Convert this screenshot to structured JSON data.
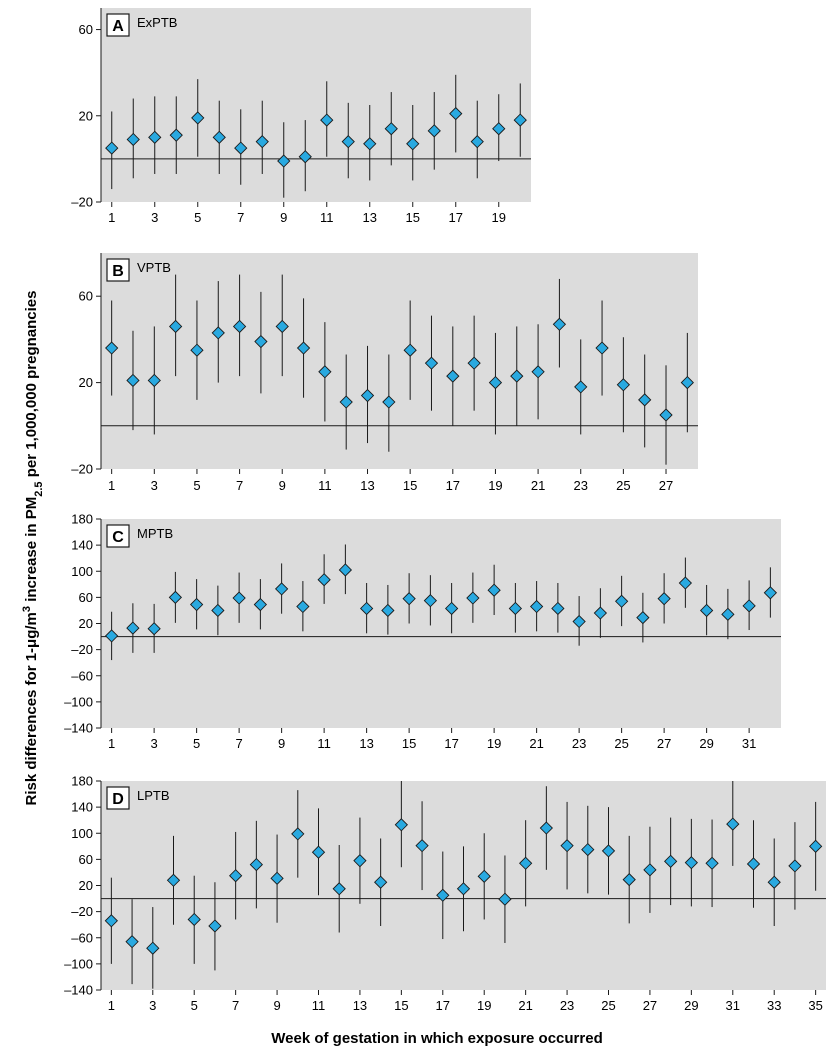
{
  "figure": {
    "ylabel": "Risk differences for 1-μg/m³ increase in PM2.5 per 1,000,000 pregnancies",
    "xlabel": "Week of gestation in which exposure occurred",
    "colors": {
      "plot_bg": "#dcdcdc",
      "marker": "#29a9e0",
      "marker_edge": "#1a1a1a",
      "line": "#1a1a1a"
    }
  },
  "chart_data": [
    {
      "type": "scatter",
      "panel_letter": "A",
      "title": "ExPTB",
      "xlim": [
        0.5,
        20.5
      ],
      "ylim": [
        -20,
        70
      ],
      "yticks": [
        -20,
        20,
        60
      ],
      "ytick_labels": [
        "–20",
        "20",
        "60"
      ],
      "xticks": [
        1,
        3,
        5,
        7,
        9,
        11,
        13,
        15,
        17,
        19
      ],
      "reference_line": 0,
      "x": [
        1,
        2,
        3,
        4,
        5,
        6,
        7,
        8,
        9,
        10,
        11,
        12,
        13,
        14,
        15,
        16,
        17,
        18,
        19,
        20
      ],
      "y": [
        5,
        9,
        10,
        11,
        19,
        10,
        5,
        8,
        -1,
        1,
        18,
        8,
        7,
        14,
        7,
        13,
        21,
        8,
        14,
        18
      ],
      "ci_low": [
        -14,
        -9,
        -7,
        -7,
        1,
        -7,
        -12,
        -7,
        -18,
        -15,
        1,
        -9,
        -10,
        -3,
        -10,
        -5,
        3,
        -9,
        -1,
        1
      ],
      "ci_high": [
        22,
        28,
        29,
        29,
        37,
        27,
        23,
        27,
        17,
        18,
        36,
        26,
        25,
        31,
        25,
        31,
        39,
        27,
        30,
        35
      ]
    },
    {
      "type": "scatter",
      "panel_letter": "B",
      "title": "VPTB",
      "xlim": [
        0.5,
        28.5
      ],
      "ylim": [
        -20,
        80
      ],
      "yticks": [
        -20,
        20,
        60
      ],
      "ytick_labels": [
        "–20",
        "20",
        "60"
      ],
      "xticks": [
        1,
        3,
        5,
        7,
        9,
        11,
        13,
        15,
        17,
        19,
        21,
        23,
        25,
        27
      ],
      "reference_line": 0,
      "x": [
        1,
        2,
        3,
        4,
        5,
        6,
        7,
        8,
        9,
        10,
        11,
        12,
        13,
        14,
        15,
        16,
        17,
        18,
        19,
        20,
        21,
        22,
        23,
        24,
        25,
        26,
        27,
        28
      ],
      "y": [
        36,
        21,
        21,
        46,
        35,
        43,
        46,
        39,
        46,
        36,
        25,
        11,
        14,
        11,
        35,
        29,
        23,
        29,
        20,
        23,
        25,
        47,
        18,
        36,
        19,
        12,
        5,
        20
      ],
      "ci_low": [
        14,
        -2,
        -4,
        23,
        12,
        20,
        23,
        15,
        23,
        13,
        2,
        -11,
        -8,
        -12,
        12,
        7,
        0,
        7,
        -4,
        0,
        3,
        27,
        -4,
        14,
        -3,
        -10,
        -18,
        -3
      ],
      "ci_high": [
        58,
        44,
        46,
        70,
        58,
        67,
        70,
        62,
        70,
        59,
        48,
        33,
        37,
        33,
        58,
        51,
        46,
        51,
        43,
        46,
        47,
        68,
        40,
        58,
        41,
        33,
        28,
        43
      ]
    },
    {
      "type": "scatter",
      "panel_letter": "C",
      "title": "MPTB",
      "xlim": [
        0.5,
        32.5
      ],
      "ylim": [
        -140,
        180
      ],
      "yticks": [
        -140,
        -100,
        -60,
        -20,
        20,
        60,
        100,
        140,
        180
      ],
      "ytick_labels": [
        "–140",
        "–100",
        "–60",
        "–20",
        "20",
        "60",
        "100",
        "140",
        "180"
      ],
      "xticks": [
        1,
        3,
        5,
        7,
        9,
        11,
        13,
        15,
        17,
        19,
        21,
        23,
        25,
        27,
        29,
        31
      ],
      "reference_line": 0,
      "x": [
        1,
        2,
        3,
        4,
        5,
        6,
        7,
        8,
        9,
        10,
        11,
        12,
        13,
        14,
        15,
        16,
        17,
        18,
        19,
        20,
        21,
        22,
        23,
        24,
        25,
        26,
        27,
        28,
        29,
        30,
        31,
        32
      ],
      "y": [
        1,
        13,
        12,
        60,
        49,
        40,
        59,
        49,
        73,
        46,
        87,
        102,
        43,
        40,
        58,
        55,
        43,
        59,
        71,
        43,
        46,
        43,
        23,
        36,
        54,
        29,
        58,
        82,
        40,
        34,
        47,
        67
      ],
      "ci_low": [
        -36,
        -25,
        -25,
        21,
        11,
        2,
        21,
        11,
        35,
        8,
        50,
        65,
        5,
        3,
        20,
        17,
        5,
        21,
        33,
        6,
        8,
        6,
        -14,
        -2,
        16,
        -9,
        20,
        44,
        2,
        -4,
        10,
        29
      ],
      "ci_high": [
        38,
        51,
        50,
        99,
        88,
        78,
        98,
        88,
        112,
        85,
        126,
        141,
        82,
        79,
        97,
        94,
        82,
        98,
        110,
        82,
        85,
        82,
        62,
        74,
        93,
        67,
        97,
        121,
        79,
        73,
        86,
        106
      ]
    },
    {
      "type": "scatter",
      "panel_letter": "D",
      "title": "LPTB",
      "xlim": [
        0.5,
        35.5
      ],
      "ylim": [
        -140,
        180
      ],
      "yticks": [
        -140,
        -100,
        -60,
        -20,
        20,
        60,
        100,
        140,
        180
      ],
      "ytick_labels": [
        "–140",
        "–100",
        "–60",
        "–20",
        "20",
        "60",
        "100",
        "140",
        "180"
      ],
      "xticks": [
        1,
        3,
        5,
        7,
        9,
        11,
        13,
        15,
        17,
        19,
        21,
        23,
        25,
        27,
        29,
        31,
        33,
        35
      ],
      "reference_line": 0,
      "x": [
        1,
        2,
        3,
        4,
        5,
        6,
        7,
        8,
        9,
        10,
        11,
        12,
        13,
        14,
        15,
        16,
        17,
        18,
        19,
        20,
        21,
        22,
        23,
        24,
        25,
        26,
        27,
        28,
        29,
        30,
        31,
        32,
        33,
        34,
        35
      ],
      "y": [
        -34,
        -66,
        -76,
        28,
        -32,
        -42,
        35,
        52,
        31,
        99,
        71,
        15,
        58,
        25,
        113,
        81,
        5,
        15,
        34,
        -1,
        54,
        108,
        81,
        75,
        73,
        29,
        44,
        57,
        55,
        54,
        114,
        53,
        25,
        50,
        80
      ],
      "ci_low": [
        -100,
        -131,
        -138,
        -40,
        -100,
        -110,
        -32,
        -15,
        -37,
        32,
        5,
        -52,
        -8,
        -42,
        48,
        13,
        -62,
        -50,
        -32,
        -68,
        -12,
        44,
        14,
        8,
        6,
        -38,
        -22,
        -10,
        -12,
        -13,
        50,
        -14,
        -42,
        -17,
        12
      ],
      "ci_high": [
        32,
        -1,
        -13,
        96,
        35,
        25,
        102,
        119,
        98,
        166,
        138,
        82,
        124,
        92,
        180,
        149,
        72,
        80,
        100,
        66,
        120,
        172,
        148,
        142,
        140,
        96,
        110,
        124,
        122,
        121,
        180,
        120,
        92,
        117,
        148
      ]
    }
  ]
}
